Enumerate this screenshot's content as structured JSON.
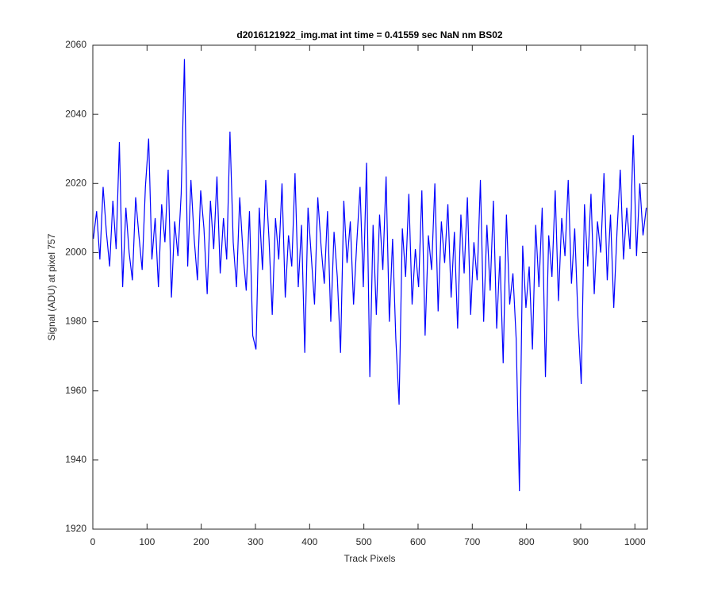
{
  "chart_data": {
    "type": "line",
    "title": "d2016121922_img.mat int time = 0.41559 sec  NaN nm BS02",
    "x_label": "Track Pixels",
    "y_label": "Signal (ADU) at pixel 757",
    "xlim": [
      0,
      1023
    ],
    "ylim": [
      1920,
      2060
    ],
    "xticks": [
      0,
      100,
      200,
      300,
      400,
      500,
      600,
      700,
      800,
      900,
      1000
    ],
    "yticks": [
      1920,
      1940,
      1960,
      1980,
      2000,
      2020,
      2040,
      2060
    ],
    "x": [
      1,
      7,
      13,
      19,
      25,
      31,
      37,
      43,
      49,
      55,
      61,
      67,
      73,
      79,
      85,
      91,
      97,
      103,
      109,
      115,
      121,
      127,
      133,
      139,
      145,
      151,
      157,
      163,
      169,
      175,
      181,
      187,
      193,
      199,
      205,
      211,
      217,
      223,
      229,
      235,
      241,
      247,
      253,
      259,
      265,
      271,
      277,
      283,
      289,
      295,
      301,
      307,
      313,
      319,
      325,
      331,
      337,
      343,
      349,
      355,
      361,
      367,
      373,
      379,
      385,
      391,
      397,
      403,
      409,
      415,
      421,
      427,
      433,
      439,
      445,
      451,
      457,
      463,
      469,
      475,
      481,
      487,
      493,
      499,
      505,
      511,
      517,
      523,
      529,
      535,
      541,
      547,
      553,
      559,
      565,
      571,
      577,
      583,
      589,
      595,
      601,
      607,
      613,
      619,
      625,
      631,
      637,
      643,
      649,
      655,
      661,
      667,
      673,
      679,
      685,
      691,
      697,
      703,
      709,
      715,
      721,
      727,
      733,
      739,
      745,
      751,
      757,
      763,
      769,
      775,
      781,
      787,
      793,
      799,
      805,
      811,
      817,
      823,
      829,
      835,
      841,
      847,
      853,
      859,
      865,
      871,
      877,
      883,
      889,
      895,
      901,
      907,
      913,
      919,
      925,
      931,
      937,
      943,
      949,
      955,
      961,
      967,
      973,
      979,
      985,
      991,
      997,
      1003,
      1009,
      1015,
      1021
    ],
    "series": [
      {
        "color": "#0000ff",
        "values": [
          2004,
          2012,
          1998,
          2019,
          2006,
          1996,
          2015,
          2001,
          2032,
          1990,
          2013,
          2000,
          1992,
          2016,
          2005,
          1995,
          2019,
          2033,
          1998,
          2010,
          1990,
          2014,
          2003,
          2024,
          1987,
          2009,
          1999,
          2017,
          2056,
          1996,
          2021,
          2004,
          1992,
          2018,
          2007,
          1988,
          2015,
          2001,
          2022,
          1994,
          2010,
          1998,
          2035,
          2003,
          1990,
          2016,
          2000,
          1989,
          2012,
          1976,
          1972,
          2013,
          1995,
          2021,
          2004,
          1982,
          2010,
          1998,
          2020,
          1987,
          2005,
          1996,
          2023,
          1990,
          2008,
          1971,
          2013,
          1999,
          1985,
          2016,
          2002,
          1991,
          2012,
          1980,
          2006,
          1993,
          1971,
          2015,
          1997,
          2009,
          1985,
          2003,
          2019,
          1990,
          2026,
          1964,
          2008,
          1982,
          2011,
          1995,
          2022,
          1980,
          2004,
          1975,
          1956,
          2007,
          1993,
          2017,
          1985,
          2001,
          1990,
          2018,
          1976,
          2005,
          1995,
          2020,
          1983,
          2009,
          1997,
          2014,
          1987,
          2006,
          1978,
          2011,
          1994,
          2016,
          1982,
          2003,
          1992,
          2021,
          1980,
          2008,
          1989,
          2015,
          1978,
          1999,
          1968,
          2011,
          1985,
          1994,
          1975,
          1931,
          2002,
          1984,
          1996,
          1972,
          2008,
          1990,
          2013,
          1964,
          2005,
          1993,
          2018,
          1986,
          2010,
          1999,
          2021,
          1991,
          2007,
          1981,
          1962,
          2014,
          1996,
          2017,
          1988,
          2009,
          2000,
          2023,
          1992,
          2011,
          1984,
          2006,
          2024,
          1998,
          2013,
          2001,
          2034,
          1999,
          2020,
          2005,
          2013
        ]
      }
    ]
  }
}
